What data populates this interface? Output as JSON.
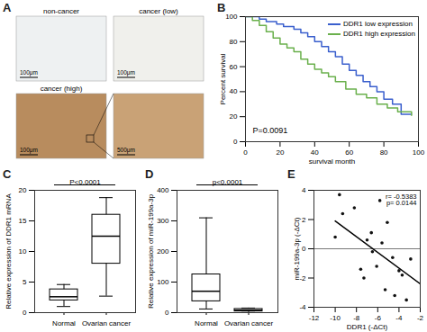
{
  "chart_data": [
    {
      "type": "image",
      "panel": "A",
      "images": [
        {
          "label": "non-cancer",
          "scale_bar": "100μm"
        },
        {
          "label": "cancer (low)",
          "scale_bar": "100μm"
        },
        {
          "label": "cancer (high)",
          "scale_bar": "100μm"
        },
        {
          "label": null,
          "scale_bar": "500μm"
        }
      ]
    },
    {
      "type": "line",
      "panel": "B",
      "x_label": "survival month",
      "y_label": "Percent survival",
      "series": [
        {
          "name": "DDR1 low expression",
          "color": "#3a5fcd",
          "x": [
            0,
            5,
            8,
            12,
            18,
            22,
            28,
            32,
            36,
            40,
            44,
            48,
            52,
            56,
            60,
            64,
            68,
            72,
            76,
            80,
            85,
            90,
            96
          ],
          "values": [
            100,
            100,
            98,
            96,
            94,
            92,
            90,
            87,
            84,
            80,
            76,
            72,
            68,
            62,
            57,
            53,
            48,
            44,
            40,
            34,
            30,
            22,
            22
          ]
        },
        {
          "name": "DDR1 high expression",
          "color": "#6ab04c",
          "x": [
            0,
            4,
            8,
            12,
            16,
            20,
            24,
            28,
            32,
            36,
            40,
            44,
            48,
            52,
            58,
            64,
            70,
            76,
            82,
            88,
            96
          ],
          "values": [
            100,
            97,
            93,
            88,
            83,
            78,
            75,
            72,
            66,
            62,
            58,
            55,
            52,
            48,
            42,
            38,
            35,
            30,
            27,
            24,
            21
          ]
        }
      ],
      "xlim": [
        0,
        100
      ],
      "xticks": [
        0,
        20,
        40,
        60,
        80,
        100
      ],
      "ylim": [
        0,
        100
      ],
      "yticks": [
        0,
        20,
        40,
        60,
        80,
        100
      ],
      "annotation": "P=0.0091",
      "legend": "top-right"
    },
    {
      "type": "box",
      "panel": "C",
      "y_label": "Relative expression of DDR1 mRNA",
      "categories": [
        "Normal",
        "Ovarian cancer"
      ],
      "min": [
        1.0,
        2.7
      ],
      "q1": [
        2.0,
        8.0
      ],
      "median": [
        2.6,
        12.5
      ],
      "q3": [
        3.8,
        16.0
      ],
      "max": [
        4.6,
        18.8
      ],
      "ylim": [
        0,
        20
      ],
      "yticks": [
        0,
        5,
        10,
        15,
        20
      ],
      "annotation": "P<0.0001"
    },
    {
      "type": "box",
      "panel": "D",
      "y_label": "Relative expression of miR-199a-3p",
      "categories": [
        "Normal",
        "Ovarian cancer"
      ],
      "min": [
        12,
        0.5
      ],
      "q1": [
        37,
        4
      ],
      "median": [
        70,
        8
      ],
      "q3": [
        125,
        12
      ],
      "max": [
        310,
        15
      ],
      "ylim": [
        0,
        400
      ],
      "yticks": [
        0,
        100,
        200,
        300,
        400
      ],
      "annotation": "p<0.0001"
    },
    {
      "type": "scatter",
      "panel": "E",
      "x_label": "DDR1 (-ΔCt)",
      "y_label": "miR-199a-3p (-ΔCt)",
      "x": [
        -10,
        -9.6,
        -9.3,
        -8.2,
        -7.6,
        -7.3,
        -7,
        -6.6,
        -6.5,
        -6.1,
        -5.8,
        -5.6,
        -5.3,
        -5.1,
        -4.6,
        -4.4,
        -4,
        -3.7,
        -3.3,
        -2.9
      ],
      "values": [
        0.8,
        3.7,
        2.4,
        2.8,
        -1.4,
        -2,
        0.6,
        1.1,
        -0.2,
        -1.2,
        3.3,
        0.4,
        -2.8,
        1.8,
        -0.6,
        -3.2,
        -1.5,
        -1.8,
        -3.5,
        -0.7
      ],
      "color": "#111111",
      "marker": "circle",
      "trend_line": {
        "x": [
          -10,
          -2
        ],
        "values": [
          1.9,
          -2.4
        ]
      },
      "hline": 0,
      "xlim": [
        -12,
        -2
      ],
      "xticks": [
        -12,
        -10,
        -8,
        -6,
        -4,
        -2
      ],
      "ylim": [
        -4,
        4
      ],
      "yticks": [
        -4,
        -2,
        0,
        2,
        4
      ],
      "annotations": [
        "r= -0.5383",
        "p= 0.0144"
      ]
    }
  ]
}
